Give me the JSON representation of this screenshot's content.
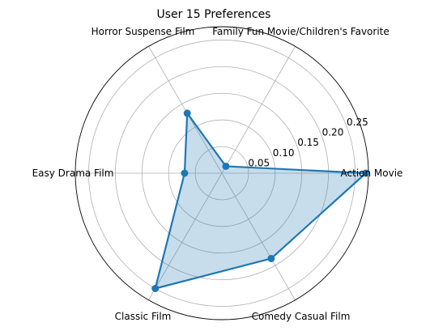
{
  "chart_data": {
    "type": "radar",
    "title": "User 15 Preferences",
    "categories": [
      "Action Movie",
      "Family Fun Movie/Children's Favorite",
      "Horror Suspense Film",
      "Easy Drama Film",
      "Classic Film",
      "Comedy Casual Film"
    ],
    "series": [
      {
        "values": [
          0.27,
          0.015,
          0.13,
          0.07,
          0.25,
          0.185
        ],
        "color": "#1f77b4"
      }
    ],
    "rlim": [
      0,
      0.275
    ],
    "rticks": [
      0.05,
      0.1,
      0.15,
      0.2,
      0.25
    ],
    "rtick_labels": [
      "0.05",
      "0.10",
      "0.15",
      "0.20",
      "0.25"
    ],
    "grid": true
  }
}
